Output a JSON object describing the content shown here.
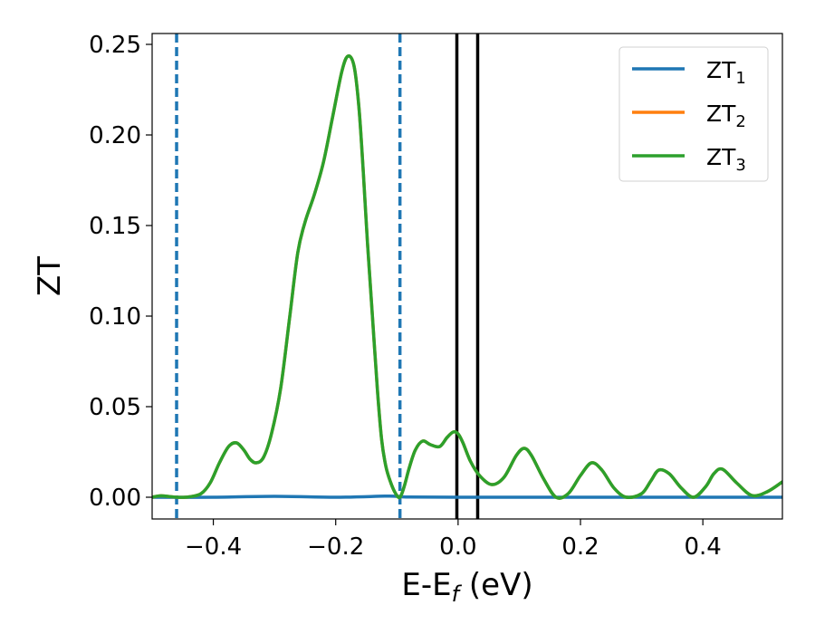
{
  "chart_data": {
    "type": "line",
    "xlabel": "E-E",
    "xlabel_sub": "f",
    "xlabel_unit": " (eV)",
    "ylabel": "ZT",
    "xlim": [
      -0.5,
      0.53
    ],
    "ylim": [
      -0.012,
      0.256
    ],
    "x_ticks": [
      -0.4,
      -0.2,
      0.0,
      0.2,
      0.4
    ],
    "x_tick_labels": [
      "−0.4",
      "−0.2",
      "0.0",
      "0.2",
      "0.4"
    ],
    "y_ticks": [
      0.0,
      0.05,
      0.1,
      0.15,
      0.2,
      0.25
    ],
    "y_tick_labels": [
      "0.00",
      "0.05",
      "0.10",
      "0.15",
      "0.20",
      "0.25"
    ],
    "grid": false,
    "legend_position": "top-right",
    "series": [
      {
        "name": "ZT",
        "name_sub": "1",
        "color": "#1f77b4",
        "x": [
          -0.5,
          -0.4,
          -0.3,
          -0.2,
          -0.12,
          -0.1,
          -0.08,
          0.0,
          0.2,
          0.4,
          0.53
        ],
        "y": [
          0.0,
          0.0,
          0.0005,
          0.0,
          0.0006,
          0.0005,
          0.0001,
          0.0,
          0.0,
          0.0,
          0.0
        ]
      },
      {
        "name": "ZT",
        "name_sub": "2",
        "color": "#ff7f0e",
        "x": [
          -0.5,
          -0.485,
          -0.46,
          -0.44,
          -0.42,
          -0.405,
          -0.39,
          -0.375,
          -0.362,
          -0.35,
          -0.34,
          -0.33,
          -0.318,
          -0.305,
          -0.29,
          -0.275,
          -0.262,
          -0.25,
          -0.235,
          -0.22,
          -0.205,
          -0.19,
          -0.18,
          -0.17,
          -0.162,
          -0.155,
          -0.148,
          -0.14,
          -0.132,
          -0.125,
          -0.118,
          -0.11,
          -0.102,
          -0.095,
          -0.088,
          -0.08,
          -0.07,
          -0.058,
          -0.045,
          -0.03,
          -0.018,
          -0.008,
          0.0,
          0.008,
          0.02,
          0.035,
          0.055,
          0.075,
          0.095,
          0.108,
          0.12,
          0.14,
          0.16,
          0.18,
          0.2,
          0.218,
          0.235,
          0.255,
          0.275,
          0.3,
          0.315,
          0.328,
          0.345,
          0.365,
          0.385,
          0.405,
          0.418,
          0.432,
          0.455,
          0.48,
          0.505,
          0.53
        ],
        "y": [
          0.0,
          0.0008,
          0.0,
          0.0002,
          0.002,
          0.008,
          0.019,
          0.028,
          0.03,
          0.026,
          0.021,
          0.019,
          0.022,
          0.035,
          0.06,
          0.1,
          0.135,
          0.152,
          0.167,
          0.185,
          0.21,
          0.235,
          0.2435,
          0.238,
          0.215,
          0.18,
          0.14,
          0.1,
          0.06,
          0.032,
          0.017,
          0.008,
          0.002,
          0.0,
          0.006,
          0.016,
          0.026,
          0.031,
          0.029,
          0.028,
          0.033,
          0.036,
          0.035,
          0.03,
          0.02,
          0.012,
          0.007,
          0.011,
          0.023,
          0.027,
          0.023,
          0.01,
          0.0,
          0.002,
          0.012,
          0.019,
          0.015,
          0.005,
          0.0,
          0.002,
          0.009,
          0.015,
          0.013,
          0.005,
          0.0,
          0.006,
          0.013,
          0.0155,
          0.008,
          0.001,
          0.003,
          0.0085
        ]
      },
      {
        "name": "ZT",
        "name_sub": "3",
        "color": "#2ca02c",
        "x": [
          -0.5,
          -0.485,
          -0.46,
          -0.44,
          -0.42,
          -0.405,
          -0.39,
          -0.375,
          -0.362,
          -0.35,
          -0.34,
          -0.33,
          -0.318,
          -0.305,
          -0.29,
          -0.275,
          -0.262,
          -0.25,
          -0.235,
          -0.22,
          -0.205,
          -0.19,
          -0.18,
          -0.17,
          -0.162,
          -0.155,
          -0.148,
          -0.14,
          -0.132,
          -0.125,
          -0.118,
          -0.11,
          -0.102,
          -0.095,
          -0.088,
          -0.08,
          -0.07,
          -0.058,
          -0.045,
          -0.03,
          -0.018,
          -0.008,
          0.0,
          0.008,
          0.02,
          0.035,
          0.055,
          0.075,
          0.095,
          0.108,
          0.12,
          0.14,
          0.16,
          0.18,
          0.2,
          0.218,
          0.235,
          0.255,
          0.275,
          0.3,
          0.315,
          0.328,
          0.345,
          0.365,
          0.385,
          0.405,
          0.418,
          0.432,
          0.455,
          0.48,
          0.505,
          0.53
        ],
        "y": [
          0.0,
          0.0008,
          0.0,
          0.0002,
          0.002,
          0.008,
          0.019,
          0.028,
          0.03,
          0.026,
          0.021,
          0.019,
          0.022,
          0.035,
          0.06,
          0.1,
          0.135,
          0.152,
          0.167,
          0.185,
          0.21,
          0.235,
          0.2435,
          0.238,
          0.215,
          0.18,
          0.14,
          0.1,
          0.06,
          0.032,
          0.017,
          0.008,
          0.002,
          0.0,
          0.006,
          0.016,
          0.026,
          0.031,
          0.029,
          0.028,
          0.033,
          0.036,
          0.035,
          0.03,
          0.02,
          0.012,
          0.007,
          0.011,
          0.023,
          0.027,
          0.023,
          0.01,
          0.0,
          0.002,
          0.012,
          0.019,
          0.015,
          0.005,
          0.0,
          0.002,
          0.009,
          0.015,
          0.013,
          0.005,
          0.0,
          0.006,
          0.013,
          0.0155,
          0.008,
          0.001,
          0.003,
          0.0085
        ]
      }
    ],
    "vertical_lines": [
      {
        "x": -0.46,
        "style": "dashed",
        "color": "#1f77b4"
      },
      {
        "x": -0.095,
        "style": "dashed",
        "color": "#1f77b4"
      },
      {
        "x": -0.002,
        "style": "solid",
        "color": "#000000"
      },
      {
        "x": 0.032,
        "style": "solid",
        "color": "#000000"
      }
    ]
  }
}
